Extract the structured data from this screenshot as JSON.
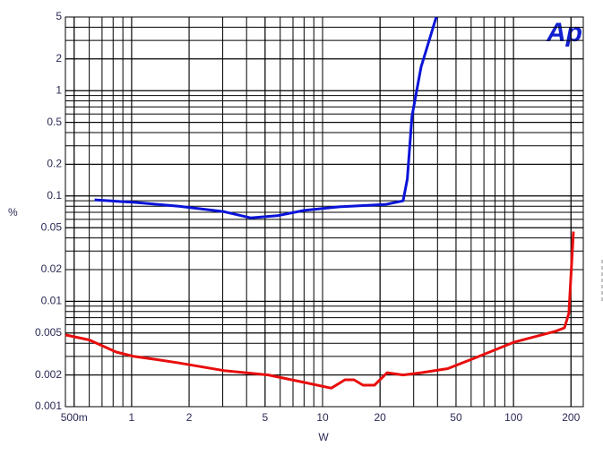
{
  "chart_data": {
    "type": "line",
    "x_label": "W",
    "y_label": "%",
    "logo": "Ap",
    "xscale": "log",
    "yscale": "log",
    "grid": true,
    "xlim": [
      0.45,
      232
    ],
    "ylim": [
      0.001,
      5
    ],
    "xticks": [
      {
        "value": 0.5,
        "label": "500m"
      },
      1,
      2,
      5,
      10,
      20,
      50,
      100,
      200
    ],
    "yticks": [
      0.001,
      0.002,
      0.005,
      0.01,
      0.02,
      0.05,
      0.1,
      0.2,
      0.5,
      1,
      2,
      5
    ],
    "series": [
      {
        "color": "#0a14d8",
        "x": [
          0.64,
          1.03,
          1.77,
          3.04,
          4.2,
          5.8,
          8.0,
          12.4,
          21.3,
          26.4,
          27.8,
          29.4,
          32.8,
          39.4
        ],
        "values": [
          0.092,
          0.087,
          0.08,
          0.071,
          0.062,
          0.065,
          0.073,
          0.079,
          0.083,
          0.09,
          0.145,
          0.57,
          1.67,
          5
        ]
      },
      {
        "color": "#e80e0e",
        "x": [
          0.45,
          0.6,
          0.83,
          1.03,
          1.35,
          1.77,
          3.04,
          5.2,
          8.0,
          11.1,
          13.1,
          14.6,
          16.3,
          18.7,
          21.8,
          26.4,
          32.8,
          45.3,
          62.8,
          101,
          166,
          185,
          195,
          206
        ],
        "values": [
          0.0048,
          0.0043,
          0.0033,
          0.003,
          0.0028,
          0.0026,
          0.0022,
          0.002,
          0.0017,
          0.0015,
          0.0018,
          0.0018,
          0.0016,
          0.0016,
          0.0021,
          0.002,
          0.0021,
          0.0023,
          0.0029,
          0.0041,
          0.0052,
          0.0056,
          0.0077,
          0.046
        ]
      }
    ]
  }
}
